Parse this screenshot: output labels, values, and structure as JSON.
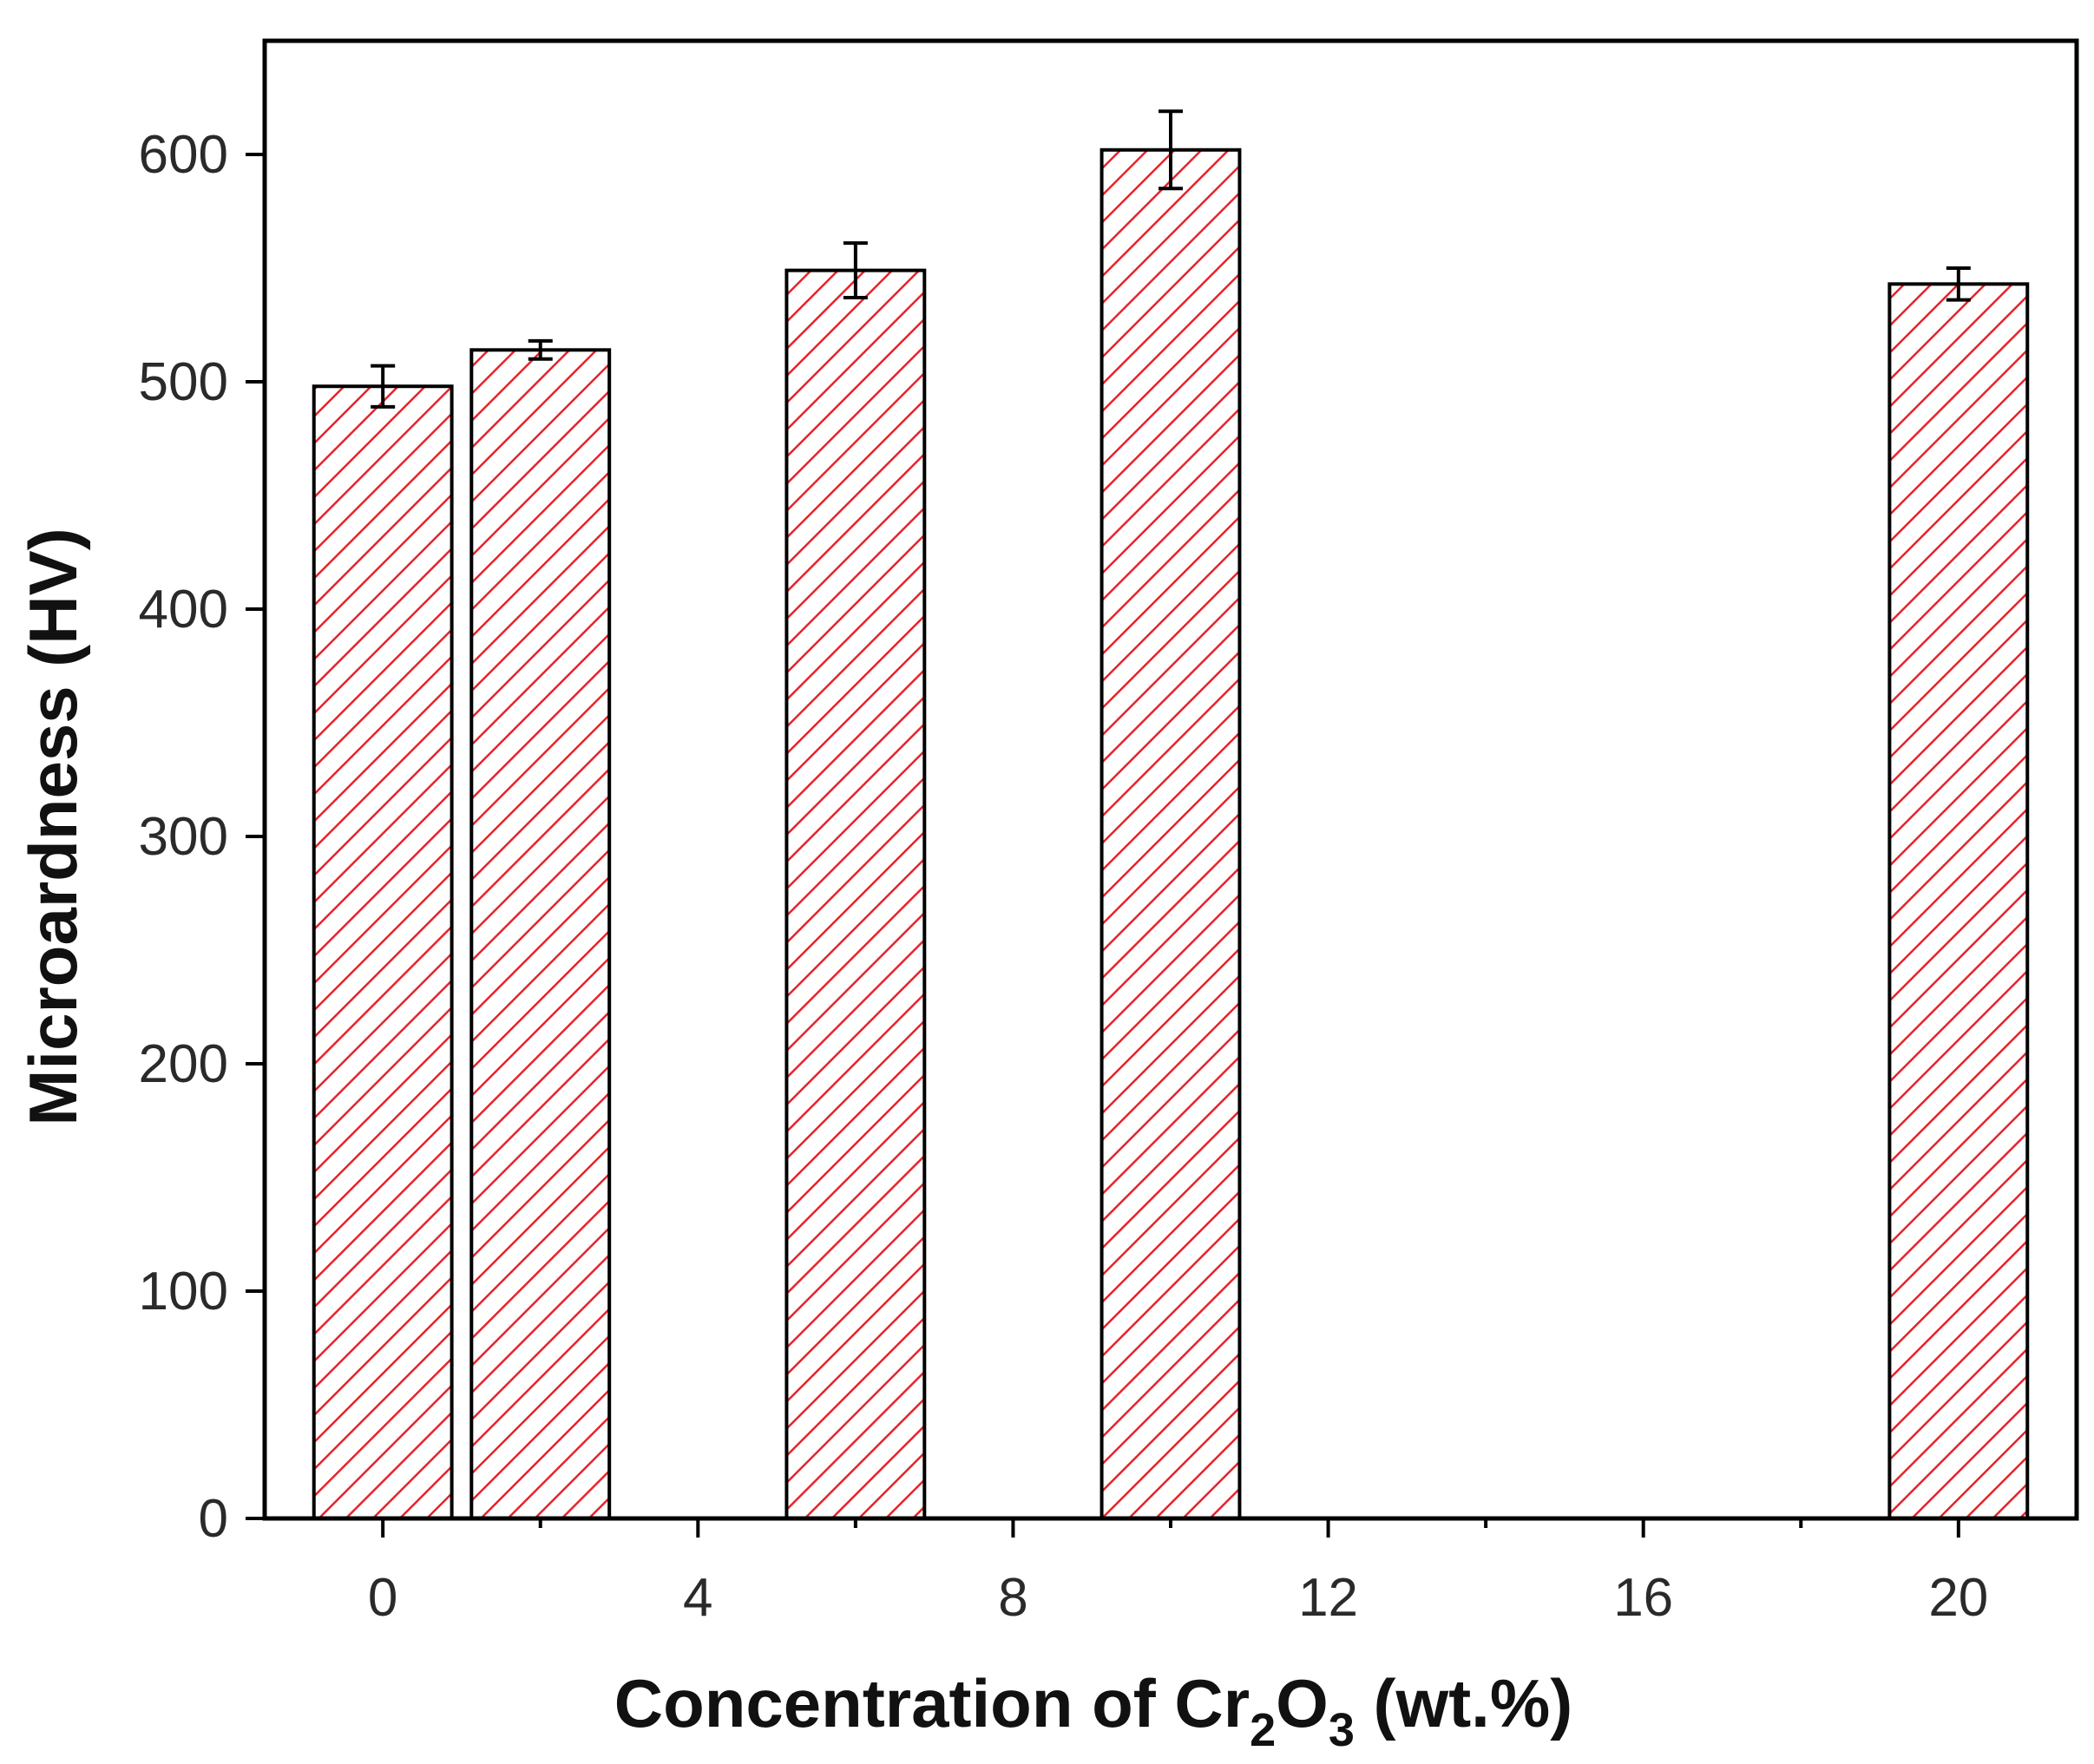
{
  "chart_data": {
    "type": "bar",
    "x": [
      0,
      2,
      6,
      10,
      20
    ],
    "values": [
      498,
      514,
      549,
      602,
      543
    ],
    "errors": [
      9,
      4,
      12,
      17,
      7
    ],
    "x_ticks": [
      0,
      4,
      8,
      12,
      16,
      20
    ],
    "x_minor_ticks": [
      2,
      6,
      10,
      14,
      18
    ],
    "y_ticks": [
      0,
      100,
      200,
      300,
      400,
      500,
      600
    ],
    "xlim": [
      -1.5,
      21.5
    ],
    "ylim": [
      0,
      650
    ],
    "bar_width": 1.75,
    "xlabel_main": "Concentration of Cr",
    "xlabel_sub1": "2",
    "xlabel_mid": "O",
    "xlabel_sub2": "3",
    "xlabel_end": " (wt.%)",
    "ylabel": "Microardness (HV)",
    "grid": false,
    "legend": "none",
    "colors": {
      "hatch": "#e8232a",
      "bar_edge": "#000000",
      "axis": "#000000",
      "background": "#ffffff"
    }
  }
}
